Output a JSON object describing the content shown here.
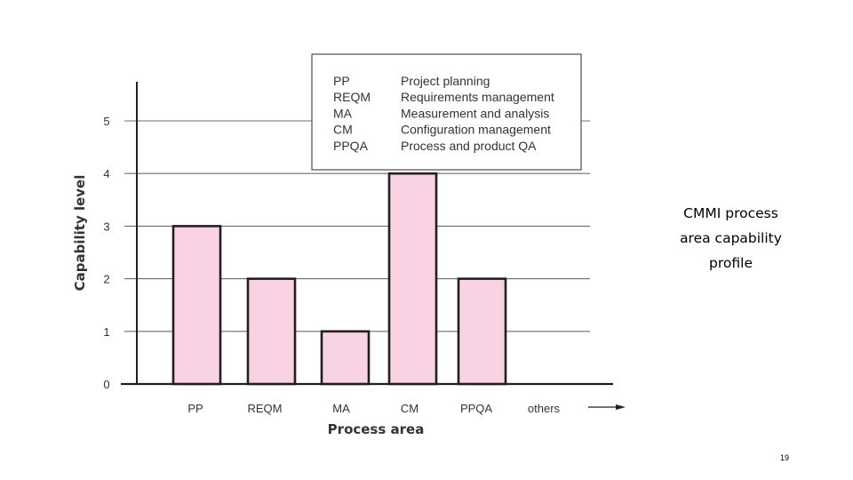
{
  "chart_data": {
    "type": "bar",
    "title": "",
    "xlabel": "Process area",
    "ylabel": "Capability level",
    "categories": [
      "PP",
      "REQM",
      "MA",
      "CM",
      "PPQA",
      "others"
    ],
    "values": [
      3,
      2,
      1,
      4,
      2,
      null
    ],
    "ylim": [
      0,
      5
    ],
    "yticks": [
      "0",
      "1",
      "2",
      "3",
      "4",
      "5"
    ],
    "grid": true,
    "legend_position": "top",
    "legend": [
      {
        "abbr": "PP",
        "text": "Project planning"
      },
      {
        "abbr": "REQM",
        "text": "Requirements management"
      },
      {
        "abbr": "MA",
        "text": "Measurement and analysis"
      },
      {
        "abbr": "CM",
        "text": "Configuration management"
      },
      {
        "abbr": "PPQA",
        "text": "Process and product QA"
      }
    ],
    "colors": {
      "bar_fill": "#f9d3e4",
      "bar_stroke": "#231f20",
      "gridline": "#6d6d6d",
      "axis": "#231f20"
    }
  },
  "caption": "CMMI process\narea capability\nprofile",
  "page_number": "19"
}
